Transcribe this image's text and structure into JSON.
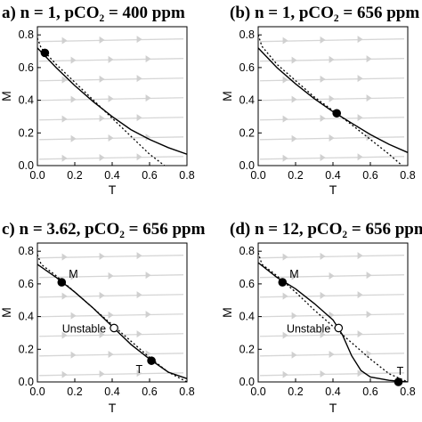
{
  "chart_data": [
    {
      "type": "line",
      "title": "a) n = 1, pCO₂ = 400 ppm",
      "xlabel": "T",
      "ylabel": "M",
      "xlim": [
        0.0,
        0.8
      ],
      "ylim": [
        0.0,
        0.85
      ],
      "xticks": [
        "0.0",
        "0.2",
        "0.4",
        "0.6",
        "0.8"
      ],
      "yticks": [
        "0.0",
        "0.2",
        "0.4",
        "0.6",
        "0.8"
      ],
      "series": [
        {
          "style": "solid",
          "x": [
            0.0,
            0.1,
            0.2,
            0.3,
            0.4,
            0.5,
            0.6,
            0.7,
            0.8
          ],
          "y": [
            0.72,
            0.6,
            0.49,
            0.39,
            0.3,
            0.22,
            0.16,
            0.11,
            0.07
          ]
        },
        {
          "style": "dotted",
          "x": [
            0.0,
            0.02,
            0.1,
            0.2,
            0.3,
            0.4,
            0.5,
            0.6,
            0.68
          ],
          "y": [
            0.78,
            0.72,
            0.62,
            0.51,
            0.4,
            0.29,
            0.18,
            0.07,
            0.0
          ]
        }
      ],
      "points": [
        {
          "x": 0.04,
          "y": 0.69,
          "fill": "filled",
          "label": ""
        }
      ]
    },
    {
      "type": "line",
      "title": "(b) n = 1, pCO₂ = 656 ppm",
      "xlabel": "T",
      "ylabel": "M",
      "xlim": [
        0.0,
        0.8
      ],
      "ylim": [
        0.0,
        0.85
      ],
      "xticks": [
        "0.0",
        "0.2",
        "0.4",
        "0.6",
        "0.8"
      ],
      "yticks": [
        "0.0",
        "0.2",
        "0.4",
        "0.6",
        "0.8"
      ],
      "series": [
        {
          "style": "solid",
          "x": [
            0.0,
            0.1,
            0.2,
            0.3,
            0.4,
            0.5,
            0.6,
            0.7,
            0.8
          ],
          "y": [
            0.72,
            0.6,
            0.5,
            0.41,
            0.33,
            0.26,
            0.19,
            0.13,
            0.08
          ]
        },
        {
          "style": "dotted",
          "x": [
            0.0,
            0.02,
            0.1,
            0.2,
            0.3,
            0.42,
            0.5,
            0.6,
            0.7,
            0.77
          ],
          "y": [
            0.8,
            0.73,
            0.62,
            0.52,
            0.42,
            0.32,
            0.25,
            0.16,
            0.07,
            0.0
          ]
        }
      ],
      "points": [
        {
          "x": 0.42,
          "y": 0.32,
          "fill": "filled",
          "label": ""
        }
      ]
    },
    {
      "type": "line",
      "title": "c) n = 3.62, pCO₂ = 656 ppm",
      "xlabel": "T",
      "ylabel": "M",
      "xlim": [
        0.0,
        0.8
      ],
      "ylim": [
        0.0,
        0.85
      ],
      "xticks": [
        "0.0",
        "0.2",
        "0.4",
        "0.6",
        "0.8"
      ],
      "yticks": [
        "0.0",
        "0.2",
        "0.4",
        "0.6",
        "0.8"
      ],
      "series": [
        {
          "style": "solid",
          "x": [
            0.0,
            0.1,
            0.2,
            0.3,
            0.4,
            0.5,
            0.6,
            0.7,
            0.8
          ],
          "y": [
            0.72,
            0.64,
            0.55,
            0.45,
            0.34,
            0.23,
            0.14,
            0.06,
            0.02
          ]
        },
        {
          "style": "dotted",
          "x": [
            0.0,
            0.02,
            0.1,
            0.2,
            0.3,
            0.4,
            0.5,
            0.6,
            0.7,
            0.8
          ],
          "y": [
            0.78,
            0.72,
            0.65,
            0.55,
            0.45,
            0.35,
            0.25,
            0.15,
            0.06,
            0.0
          ]
        }
      ],
      "points": [
        {
          "x": 0.13,
          "y": 0.61,
          "fill": "filled",
          "label": "M"
        },
        {
          "x": 0.41,
          "y": 0.33,
          "fill": "open",
          "label": "Unstable"
        },
        {
          "x": 0.61,
          "y": 0.13,
          "fill": "filled",
          "label": "T"
        }
      ]
    },
    {
      "type": "line",
      "title": "(d) n = 12, pCO₂ = 656 ppm",
      "xlabel": "T",
      "ylabel": "M",
      "xlim": [
        0.0,
        0.8
      ],
      "ylim": [
        0.0,
        0.85
      ],
      "xticks": [
        "0.0",
        "0.2",
        "0.4",
        "0.6",
        "0.8"
      ],
      "yticks": [
        "0.0",
        "0.2",
        "0.4",
        "0.6",
        "0.8"
      ],
      "series": [
        {
          "style": "solid",
          "x": [
            0.0,
            0.1,
            0.2,
            0.3,
            0.35,
            0.4,
            0.45,
            0.5,
            0.55,
            0.6,
            0.7,
            0.8
          ],
          "y": [
            0.73,
            0.64,
            0.57,
            0.48,
            0.43,
            0.38,
            0.29,
            0.16,
            0.07,
            0.03,
            0.01,
            0.0
          ]
        },
        {
          "style": "dotted",
          "x": [
            0.0,
            0.02,
            0.1,
            0.2,
            0.3,
            0.4,
            0.5,
            0.6,
            0.7,
            0.8
          ],
          "y": [
            0.79,
            0.72,
            0.65,
            0.55,
            0.44,
            0.34,
            0.24,
            0.14,
            0.05,
            0.0
          ]
        }
      ],
      "points": [
        {
          "x": 0.13,
          "y": 0.61,
          "fill": "filled",
          "label": "M"
        },
        {
          "x": 0.43,
          "y": 0.33,
          "fill": "open",
          "label": "Unstable"
        },
        {
          "x": 0.75,
          "y": 0.0,
          "fill": "filled",
          "label": "T"
        }
      ]
    }
  ]
}
